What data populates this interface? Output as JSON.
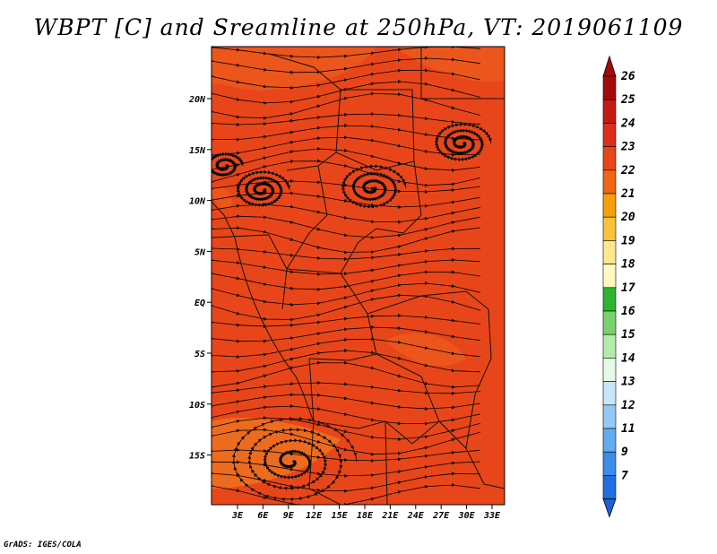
{
  "title": "WBPT [C] and Sreamline at 250hPa, VT: 2019061109",
  "credit": "GrADS: IGES/COLA",
  "map": {
    "field_colors": {
      "base": "#e8461a",
      "patch": "#ee5c1e",
      "light_patch": "#f07a22"
    },
    "lon_ticks": [
      "3E",
      "6E",
      "9E",
      "12E",
      "15E",
      "18E",
      "21E",
      "24E",
      "27E",
      "30E",
      "33E"
    ],
    "lat_ticks": [
      "20N",
      "15N",
      "10N",
      "5N",
      "EQ",
      "5S",
      "10S",
      "15S"
    ]
  },
  "colorbar": {
    "levels": [
      {
        "label": "26",
        "color": "#a50a0a"
      },
      {
        "label": "25",
        "color": "#c41a14"
      },
      {
        "label": "24",
        "color": "#dc2f1b"
      },
      {
        "label": "23",
        "color": "#e8461a"
      },
      {
        "label": "22",
        "color": "#f06414"
      },
      {
        "label": "21",
        "color": "#f5a00a"
      },
      {
        "label": "20",
        "color": "#fac23c"
      },
      {
        "label": "19",
        "color": "#fde68c"
      },
      {
        "label": "18",
        "color": "#fff8c0"
      },
      {
        "label": "17",
        "color": "#2db432"
      },
      {
        "label": "16",
        "color": "#78d26e"
      },
      {
        "label": "15",
        "color": "#b4ebaa"
      },
      {
        "label": "14",
        "color": "#e6fae6"
      },
      {
        "label": "13",
        "color": "#c8e6fa"
      },
      {
        "label": "12",
        "color": "#96c8f5"
      },
      {
        "label": "11",
        "color": "#64aaf0"
      },
      {
        "label": "9",
        "color": "#3c8ceb"
      },
      {
        "label": "7",
        "color": "#1e6ee1"
      }
    ],
    "bottom_color": "#1e5fd7"
  }
}
